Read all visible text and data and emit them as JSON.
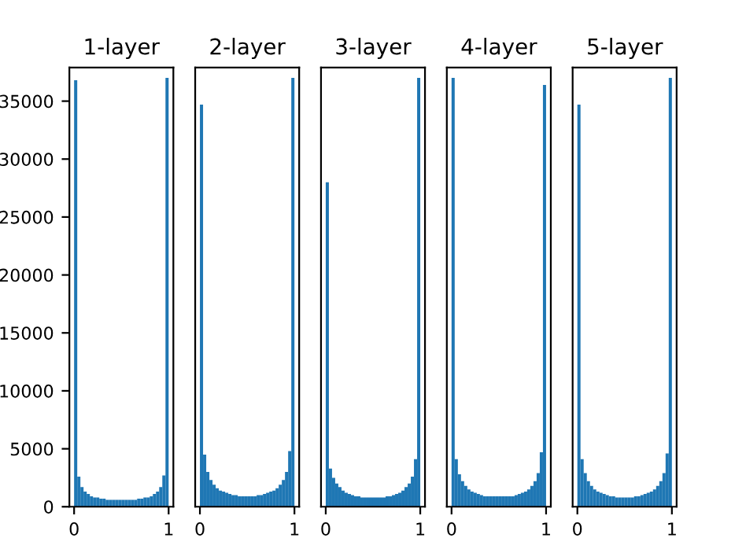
{
  "chart_data": [
    {
      "type": "histogram",
      "title": "1-layer",
      "color": "#1f77b4",
      "bins": [
        0,
        0.0333,
        0.0667,
        0.1,
        0.1333,
        0.1667,
        0.2,
        0.2333,
        0.2667,
        0.3,
        0.3333,
        0.3667,
        0.4,
        0.4333,
        0.4667,
        0.5,
        0.5333,
        0.5667,
        0.6,
        0.6333,
        0.6667,
        0.7,
        0.7333,
        0.7667,
        0.8,
        0.8333,
        0.8667,
        0.9,
        0.9333,
        0.9667,
        1
      ],
      "values": [
        36800,
        2600,
        1700,
        1300,
        1100,
        900,
        800,
        800,
        700,
        700,
        600,
        600,
        600,
        600,
        600,
        600,
        600,
        600,
        600,
        600,
        700,
        700,
        800,
        800,
        900,
        1100,
        1300,
        1700,
        2700,
        37000
      ],
      "xlim": [
        -0.05,
        1.05
      ],
      "xticks": [
        0,
        1
      ],
      "ylim": [
        0,
        37900
      ],
      "yticks": [
        0,
        5000,
        10000,
        15000,
        20000,
        25000,
        30000,
        35000
      ],
      "grid": false
    },
    {
      "type": "histogram",
      "title": "2-layer",
      "color": "#1f77b4",
      "bins": [
        0,
        0.0333,
        0.0667,
        0.1,
        0.1333,
        0.1667,
        0.2,
        0.2333,
        0.2667,
        0.3,
        0.3333,
        0.3667,
        0.4,
        0.4333,
        0.4667,
        0.5,
        0.5333,
        0.5667,
        0.6,
        0.6333,
        0.6667,
        0.7,
        0.7333,
        0.7667,
        0.8,
        0.8333,
        0.8667,
        0.9,
        0.9333,
        0.9667,
        1
      ],
      "values": [
        34700,
        4500,
        3000,
        2300,
        1900,
        1600,
        1400,
        1300,
        1200,
        1100,
        1000,
        1000,
        900,
        900,
        900,
        900,
        900,
        900,
        1000,
        1000,
        1100,
        1200,
        1300,
        1400,
        1600,
        1900,
        2300,
        3000,
        4800,
        37000
      ],
      "xlim": [
        -0.05,
        1.05
      ],
      "xticks": [
        0,
        1
      ],
      "ylim": [
        0,
        37900
      ],
      "yticks": [
        0,
        5000,
        10000,
        15000,
        20000,
        25000,
        30000,
        35000
      ],
      "tick_labels": "x",
      "grid": false
    },
    {
      "type": "histogram",
      "title": "3-layer",
      "color": "#1f77b4",
      "bins": [
        0,
        0.0333,
        0.0667,
        0.1,
        0.1333,
        0.1667,
        0.2,
        0.2333,
        0.2667,
        0.3,
        0.3333,
        0.3667,
        0.4,
        0.4333,
        0.4667,
        0.5,
        0.5333,
        0.5667,
        0.6,
        0.6333,
        0.6667,
        0.7,
        0.7333,
        0.7667,
        0.8,
        0.8333,
        0.8667,
        0.9,
        0.9333,
        0.9667,
        1
      ],
      "values": [
        28000,
        3300,
        2500,
        2000,
        1700,
        1400,
        1200,
        1100,
        1000,
        900,
        900,
        800,
        800,
        800,
        800,
        800,
        800,
        800,
        800,
        900,
        900,
        1000,
        1100,
        1200,
        1400,
        1700,
        2000,
        2600,
        4100,
        37000
      ],
      "xlim": [
        -0.05,
        1.05
      ],
      "xticks": [
        0,
        1
      ],
      "ylim": [
        0,
        37900
      ],
      "yticks": [
        0,
        5000,
        10000,
        15000,
        20000,
        25000,
        30000,
        35000
      ],
      "tick_labels": "x",
      "grid": false
    },
    {
      "type": "histogram",
      "title": "4-layer",
      "color": "#1f77b4",
      "bins": [
        0,
        0.0333,
        0.0667,
        0.1,
        0.1333,
        0.1667,
        0.2,
        0.2333,
        0.2667,
        0.3,
        0.3333,
        0.3667,
        0.4,
        0.4333,
        0.4667,
        0.5,
        0.5333,
        0.5667,
        0.6,
        0.6333,
        0.6667,
        0.7,
        0.7333,
        0.7667,
        0.8,
        0.8333,
        0.8667,
        0.9,
        0.9333,
        0.9667,
        1
      ],
      "values": [
        37000,
        4100,
        2800,
        2200,
        1800,
        1500,
        1300,
        1200,
        1100,
        1000,
        900,
        900,
        900,
        900,
        900,
        900,
        900,
        900,
        900,
        900,
        1000,
        1100,
        1200,
        1300,
        1500,
        1800,
        2200,
        2900,
        4700,
        36400
      ],
      "xlim": [
        -0.05,
        1.05
      ],
      "xticks": [
        0,
        1
      ],
      "ylim": [
        0,
        37900
      ],
      "yticks": [
        0,
        5000,
        10000,
        15000,
        20000,
        25000,
        30000,
        35000
      ],
      "tick_labels": "x",
      "grid": false
    },
    {
      "type": "histogram",
      "title": "5-layer",
      "color": "#1f77b4",
      "bins": [
        0,
        0.0333,
        0.0667,
        0.1,
        0.1333,
        0.1667,
        0.2,
        0.2333,
        0.2667,
        0.3,
        0.3333,
        0.3667,
        0.4,
        0.4333,
        0.4667,
        0.5,
        0.5333,
        0.5667,
        0.6,
        0.6333,
        0.6667,
        0.7,
        0.7333,
        0.7667,
        0.8,
        0.8333,
        0.8667,
        0.9,
        0.9333,
        0.9667,
        1
      ],
      "values": [
        34700,
        4100,
        2900,
        2200,
        1800,
        1500,
        1300,
        1200,
        1100,
        1000,
        900,
        900,
        800,
        800,
        800,
        800,
        800,
        800,
        900,
        900,
        1000,
        1100,
        1200,
        1300,
        1500,
        1800,
        2200,
        2900,
        4600,
        37000
      ],
      "xlim": [
        -0.05,
        1.05
      ],
      "xticks": [
        0,
        1
      ],
      "ylim": [
        0,
        37900
      ],
      "yticks": [
        0,
        5000,
        10000,
        15000,
        20000,
        25000,
        30000,
        35000
      ],
      "tick_labels": "x",
      "grid": false
    }
  ]
}
